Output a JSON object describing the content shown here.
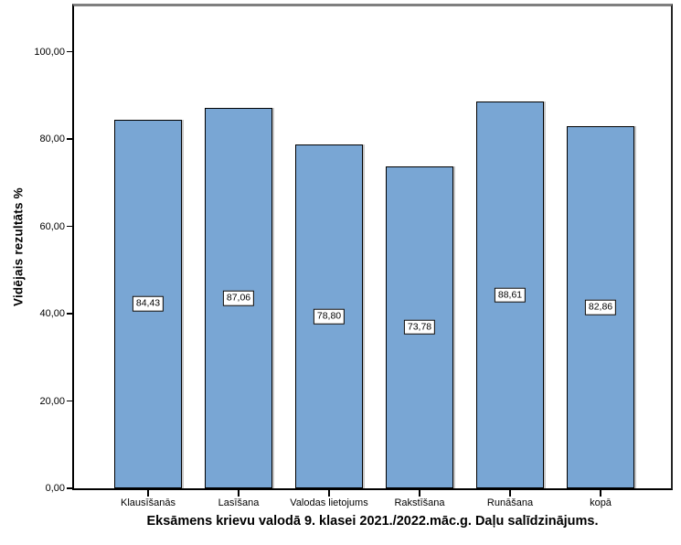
{
  "figure": {
    "background": "#ffffff",
    "y_axis_title": "Vidējais rezultāts %",
    "caption": "Eksāmens krievu valodā 9. klasei 2021./2022.māc.g. Daļu salīdzinājums."
  },
  "chart_data": {
    "type": "bar",
    "categories": [
      "Klausīšanās",
      "Lasīšana",
      "Valodas lietojums",
      "Rakstīšana",
      "Runāšana",
      "kopā"
    ],
    "values": [
      84.43,
      87.06,
      78.8,
      73.78,
      88.61,
      82.86
    ],
    "value_labels": [
      "84,43",
      "87,06",
      "78,80",
      "73,78",
      "88,61",
      "82,86"
    ],
    "value_label_position": "center-of-bar",
    "title": "Eksāmens krievu valodā 9. klasei 2021./2022.māc.g. Daļu salīdzinājums.",
    "title_position": "below-x-axis",
    "xlabel": "",
    "ylabel": "Vidējais rezultāts %",
    "ylim": [
      0,
      110.4
    ],
    "yticks": [
      0,
      20,
      40,
      60,
      80,
      100
    ],
    "ytick_labels": [
      "0,00",
      "20,00",
      "40,00",
      "60,00",
      "80,00",
      "100,00"
    ],
    "grid": false,
    "legend": null,
    "bar_color": "#79a6d4",
    "bar_border_color": "#000000",
    "background_color": "#ffffff"
  }
}
